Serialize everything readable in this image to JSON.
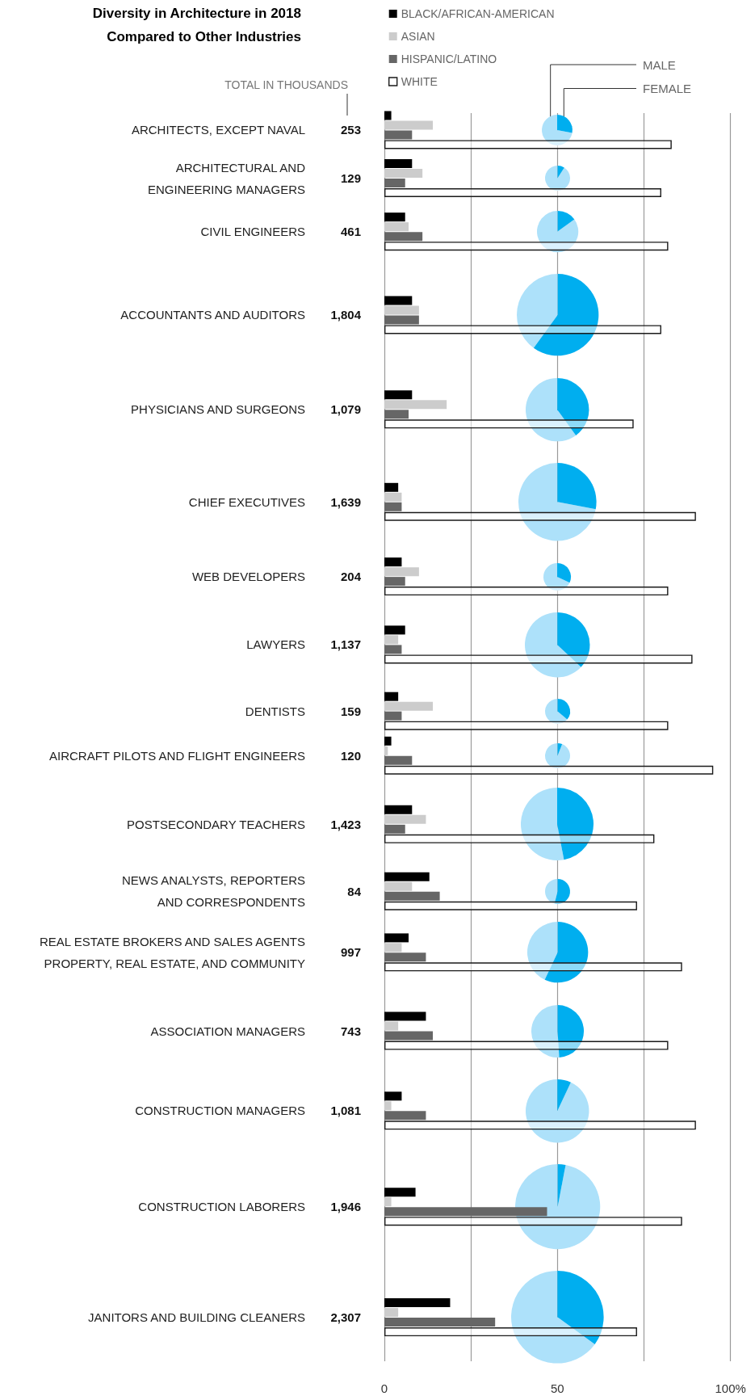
{
  "chart_data": [
    {
      "type": "bar",
      "orientation": "horizontal",
      "title": "Diversity in Architecture in 2018 Compared to Other Industries",
      "categories": [
        "ARCHITECTS, EXCEPT NAVAL",
        "ARCHITECTURAL AND\nENGINEERING MANAGERS",
        "CIVIL ENGINEERS",
        "ACCOUNTANTS AND AUDITORS",
        "PHYSICIANS AND SURGEONS",
        "CHIEF EXECUTIVES",
        "WEB DEVELOPERS",
        "LAWYERS",
        "DENTISTS",
        "AIRCRAFT PILOTS AND FLIGHT ENGINEERS",
        "POSTSECONDARY TEACHERS",
        "NEWS ANALYSTS, REPORTERS\nAND CORRESPONDENTS",
        "REAL ESTATE BROKERS AND SALES AGENTS\nPROPERTY, REAL ESTATE, AND COMMUNITY",
        "ASSOCIATION MANAGERS",
        "CONSTRUCTION MANAGERS",
        "CONSTRUCTION LABORERS",
        "JANITORS AND BUILDING CLEANERS"
      ],
      "series": [
        {
          "name": "BLACK/AFRICAN-AMERICAN",
          "color": "#000000",
          "values": [
            2,
            8,
            6,
            8,
            8,
            4,
            5,
            6,
            4,
            2,
            8,
            13,
            7,
            12,
            5,
            9,
            19
          ]
        },
        {
          "name": "ASIAN",
          "color": "#cccccc",
          "values": [
            14,
            11,
            7,
            10,
            18,
            5,
            10,
            4,
            14,
            1,
            12,
            8,
            5,
            4,
            2,
            2,
            4
          ]
        },
        {
          "name": "HISPANIC/LATINO",
          "color": "#666666",
          "values": [
            8,
            6,
            11,
            10,
            7,
            5,
            6,
            5,
            5,
            8,
            6,
            16,
            12,
            14,
            12,
            47,
            32
          ]
        },
        {
          "name": "WHITE",
          "color": "#ffffff",
          "values": [
            83,
            80,
            82,
            80,
            72,
            90,
            82,
            89,
            82,
            95,
            78,
            73,
            86,
            82,
            90,
            86,
            73
          ]
        }
      ],
      "xlim": [
        0,
        100
      ],
      "xticks": [
        0,
        {
          "value": 25,
          "label": null
        },
        50,
        {
          "value": 75,
          "label": null
        },
        {
          "value": 100,
          "label": "100%"
        }
      ],
      "grid": "x",
      "legend": "top",
      "annotations": [
        "TOTAL IN THOUSANDS",
        "253",
        "129",
        "461",
        "1,804",
        "1,079",
        "1,639",
        "204",
        "1,137",
        "159",
        "120",
        "1,423",
        "84",
        "997",
        "743",
        "1,081",
        "1,946",
        "2,307"
      ]
    },
    {
      "type": "pie",
      "categories": [
        "MALE",
        "FEMALE"
      ],
      "values": [
        72,
        28
      ],
      "colors": [
        "#ade1fa",
        "#00aeef"
      ]
    },
    {
      "type": "pie",
      "categories": [
        null,
        null
      ],
      "values": [
        91,
        9
      ],
      "colors": [
        "#ade1fa",
        "#00aeef"
      ]
    },
    {
      "type": "pie",
      "categories": [
        null,
        null
      ],
      "values": [
        85,
        15
      ],
      "colors": [
        "#ade1fa",
        "#00aeef"
      ]
    },
    {
      "type": "pie",
      "categories": [
        null,
        null
      ],
      "values": [
        40,
        60
      ],
      "colors": [
        "#ade1fa",
        "#00aeef"
      ]
    },
    {
      "type": "pie",
      "categories": [
        null,
        null
      ],
      "values": [
        60,
        40
      ],
      "colors": [
        "#ade1fa",
        "#00aeef"
      ]
    },
    {
      "type": "pie",
      "categories": [
        null,
        null
      ],
      "values": [
        72,
        28
      ],
      "colors": [
        "#ade1fa",
        "#00aeef"
      ]
    },
    {
      "type": "pie",
      "categories": [
        null,
        null
      ],
      "values": [
        68,
        32
      ],
      "colors": [
        "#ade1fa",
        "#00aeef"
      ]
    },
    {
      "type": "pie",
      "categories": [
        null,
        null
      ],
      "values": [
        63,
        37
      ],
      "colors": [
        "#ade1fa",
        "#00aeef"
      ]
    },
    {
      "type": "pie",
      "categories": [
        null,
        null
      ],
      "values": [
        64,
        36
      ],
      "colors": [
        "#ade1fa",
        "#00aeef"
      ]
    },
    {
      "type": "pie",
      "categories": [
        null,
        null
      ],
      "values": [
        94,
        6
      ],
      "colors": [
        "#ade1fa",
        "#00aeef"
      ]
    },
    {
      "type": "pie",
      "categories": [
        null,
        null
      ],
      "values": [
        53,
        47
      ],
      "colors": [
        "#ade1fa",
        "#00aeef"
      ]
    },
    {
      "type": "pie",
      "categories": [
        null,
        null
      ],
      "values": [
        46,
        54
      ],
      "colors": [
        "#ade1fa",
        "#00aeef"
      ]
    },
    {
      "type": "pie",
      "categories": [
        null,
        null
      ],
      "values": [
        43,
        57
      ],
      "colors": [
        "#ade1fa",
        "#00aeef"
      ]
    },
    {
      "type": "pie",
      "categories": [
        null,
        null
      ],
      "values": [
        51,
        49
      ],
      "colors": [
        "#ade1fa",
        "#00aeef"
      ]
    },
    {
      "type": "pie",
      "categories": [
        null,
        null
      ],
      "values": [
        93,
        7
      ],
      "colors": [
        "#ade1fa",
        "#00aeef"
      ]
    },
    {
      "type": "pie",
      "categories": [
        null,
        null
      ],
      "values": [
        97,
        3
      ],
      "colors": [
        "#ade1fa",
        "#00aeef"
      ]
    },
    {
      "type": "pie",
      "categories": [
        null,
        null
      ],
      "values": [
        65,
        35
      ],
      "colors": [
        "#ade1fa",
        "#00aeef"
      ]
    }
  ]
}
